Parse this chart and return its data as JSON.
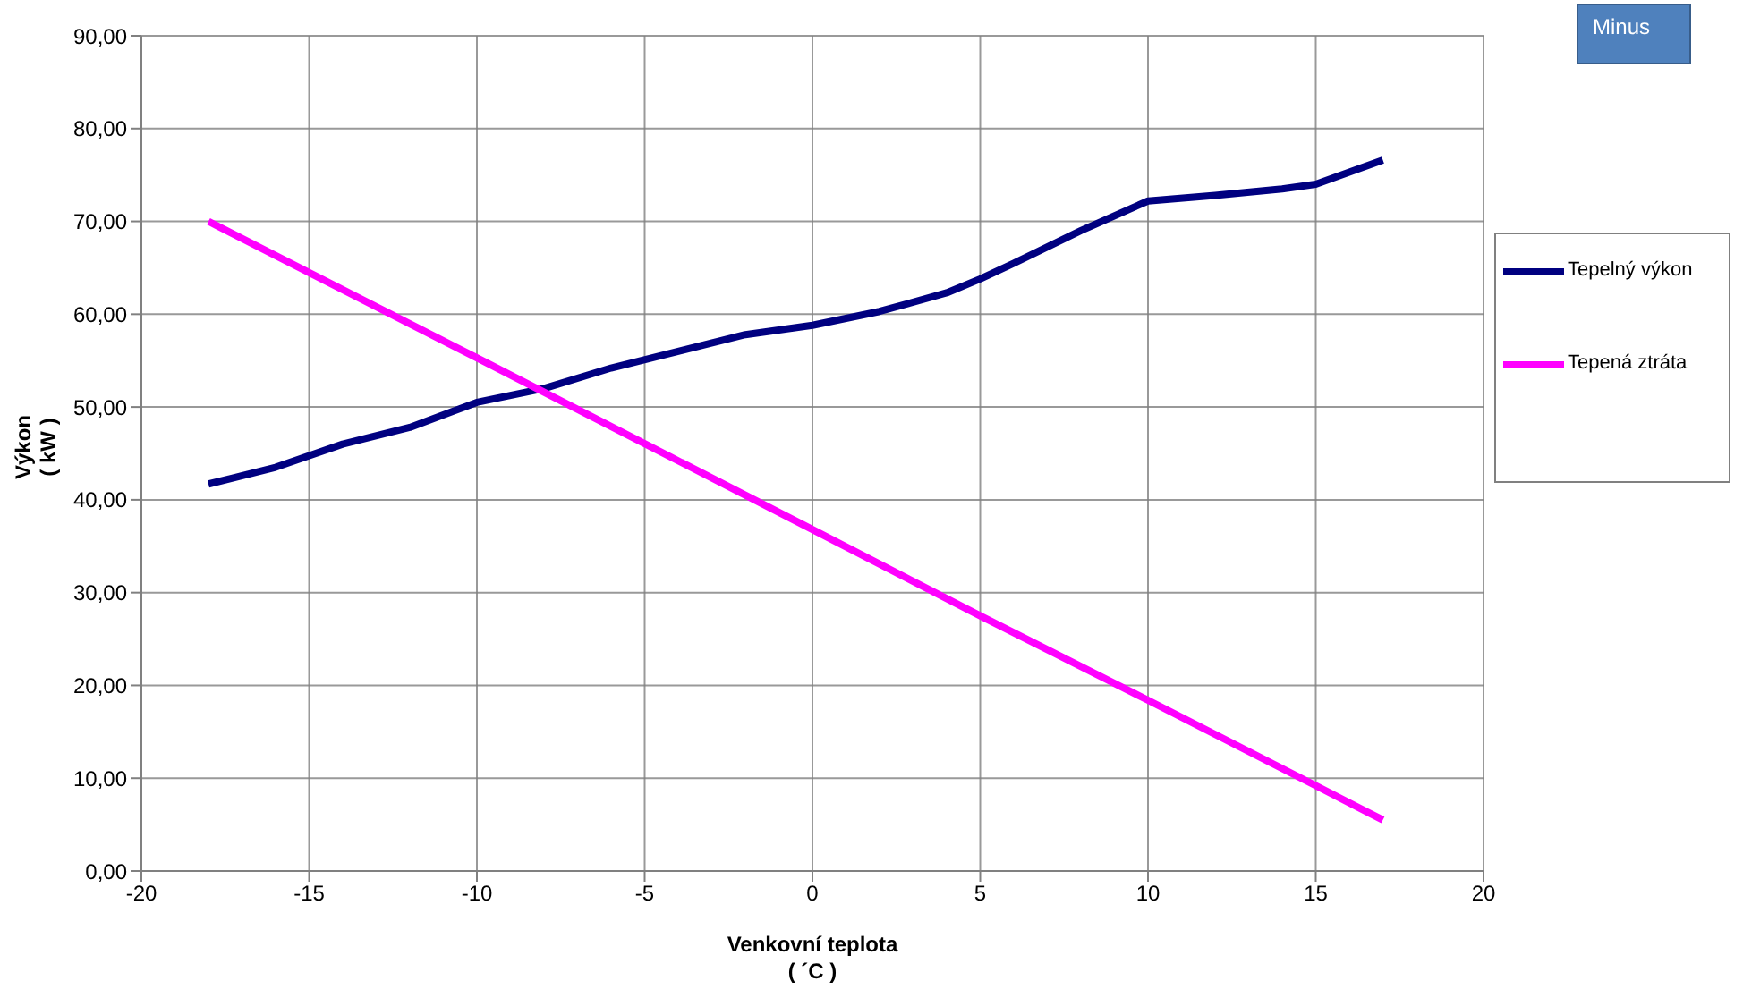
{
  "chart_data": {
    "type": "line",
    "xlabel": "Venkovní teplota\n( ´C )",
    "ylabel": "Výkon\n( kW )",
    "xlim": [
      -20,
      20
    ],
    "xticks": [
      -20,
      -15,
      -10,
      -5,
      0,
      5,
      10,
      15,
      20
    ],
    "ylim": [
      0,
      90
    ],
    "yticks": [
      {
        "value": 0,
        "label": "0,00"
      },
      {
        "value": 10,
        "label": "10,00"
      },
      {
        "value": 20,
        "label": "20,00"
      },
      {
        "value": 30,
        "label": "30,00"
      },
      {
        "value": 40,
        "label": "40,00"
      },
      {
        "value": 50,
        "label": "50,00"
      },
      {
        "value": 60,
        "label": "60,00"
      },
      {
        "value": 70,
        "label": "70,00"
      },
      {
        "value": 80,
        "label": "80,00"
      },
      {
        "value": 90,
        "label": "90,00"
      }
    ],
    "grid": true,
    "legend": "right",
    "marker": "none",
    "line_style": "solid",
    "annotations": [
      "Minus"
    ],
    "series": [
      {
        "name": "Tepelný výkon",
        "color": "#000080",
        "x": [
          -18,
          -16,
          -14,
          -12,
          -10,
          -8,
          -6,
          -4,
          -2,
          0,
          2,
          4,
          5,
          6,
          8,
          10,
          12,
          14,
          15,
          17
        ],
        "values": [
          41.7,
          43.5,
          46,
          47.8,
          50.5,
          52,
          54.2,
          56,
          57.8,
          58.8,
          60.3,
          62.3,
          63.8,
          65.5,
          69,
          72.2,
          72.8,
          73.5,
          74,
          76.6
        ]
      },
      {
        "name": "Tepená ztráta",
        "color": "#ff00ff",
        "x": [
          -18,
          -10,
          0,
          5,
          10,
          15,
          17
        ],
        "values": [
          70,
          55.3,
          36.8,
          27.5,
          18.4,
          9.2,
          5.5
        ]
      }
    ]
  }
}
